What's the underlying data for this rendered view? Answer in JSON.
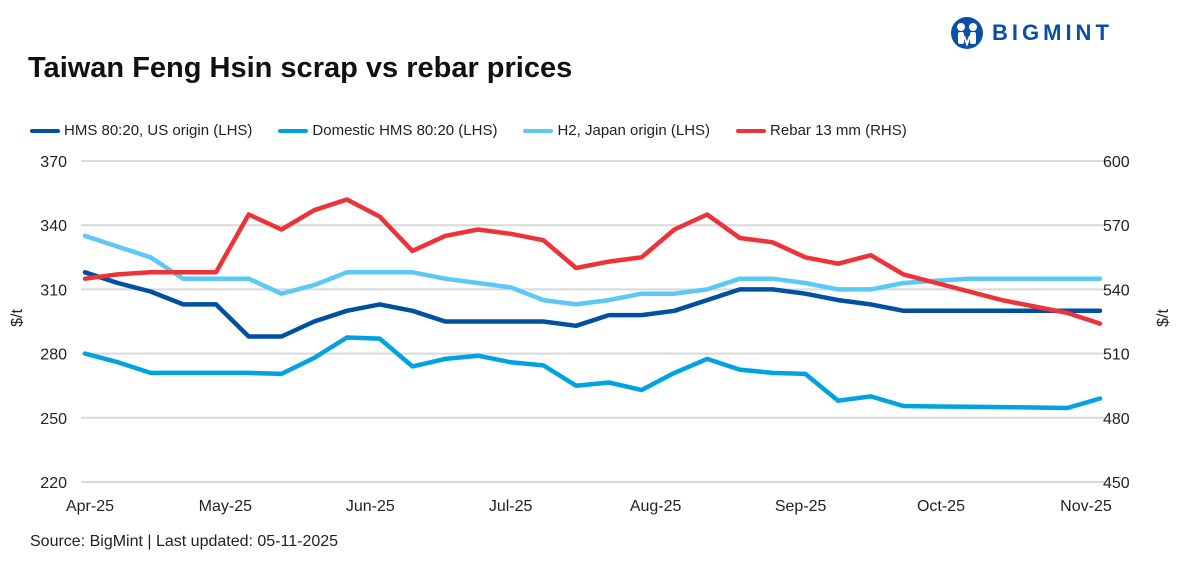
{
  "title": "Taiwan Feng Hsin scrap vs rebar prices",
  "logo": {
    "text": "BIGMINT",
    "color": "#0a4fa6"
  },
  "source": "Source: BigMint |  Last updated: 05-11-2025",
  "chart_data": {
    "type": "line",
    "title": "Taiwan Feng Hsin scrap vs rebar prices",
    "x_start": "2025-04-01",
    "x_frequency": "weekly",
    "x_tick_labels": [
      "Apr-25",
      "May-25",
      "Jun-25",
      "Jul-25",
      "Aug-25",
      "Sep-25",
      "Oct-25",
      "Nov-25"
    ],
    "x_tick_dates": [
      "2025-04-01",
      "2025-05-01",
      "2025-06-01",
      "2025-07-01",
      "2025-08-01",
      "2025-09-01",
      "2025-10-01",
      "2025-11-01"
    ],
    "ylabel_left": "$/t",
    "ylabel_right": "$/t",
    "ylim_left": [
      220,
      370
    ],
    "ylim_right": [
      450,
      600
    ],
    "yticks_left": [
      220,
      250,
      280,
      310,
      340,
      370
    ],
    "yticks_right": [
      450,
      480,
      510,
      540,
      570,
      600
    ],
    "grid": true,
    "legend_position": "top",
    "series": [
      {
        "name": "HMS 80:20, US origin (LHS)",
        "axis": "left",
        "color": "#0050a0",
        "values": [
          318,
          313,
          309,
          303,
          303,
          288,
          288,
          295,
          300,
          303,
          300,
          295,
          295,
          295,
          295,
          293,
          298,
          298,
          300,
          305,
          310,
          310,
          308,
          305,
          303,
          300,
          300,
          300,
          300,
          300,
          300,
          300
        ]
      },
      {
        "name": "Domestic HMS 80:20 (LHS)",
        "axis": "left",
        "color": "#00a3e0",
        "values": [
          280,
          276,
          271,
          271,
          271,
          271,
          270.5,
          278,
          287.5,
          287,
          274,
          277.5,
          279,
          276,
          274.5,
          265,
          266.5,
          263,
          271,
          277.5,
          272.5,
          271,
          270.5,
          258,
          260,
          255.5,
          255.3,
          255.2,
          255,
          254.8,
          254.6,
          259
        ]
      },
      {
        "name": "H2, Japan origin (LHS)",
        "axis": "left",
        "color": "#5bc8f5",
        "values": [
          335,
          330,
          325,
          315,
          315,
          315,
          308,
          312,
          318,
          318,
          318,
          315,
          313,
          311,
          305,
          303,
          305,
          308,
          308,
          310,
          315,
          315,
          313,
          310,
          310,
          313,
          314,
          315,
          315,
          315,
          315,
          315
        ]
      },
      {
        "name": "Rebar 13 mm (RHS)",
        "axis": "right",
        "color": "#ee3338",
        "values": [
          545,
          547,
          548,
          548,
          548,
          575,
          568,
          577,
          582,
          574,
          558,
          565,
          568,
          566,
          563,
          550,
          553,
          555,
          568,
          575,
          564,
          562,
          555,
          552,
          556,
          547,
          543,
          539,
          535,
          532,
          529,
          524
        ]
      }
    ]
  }
}
